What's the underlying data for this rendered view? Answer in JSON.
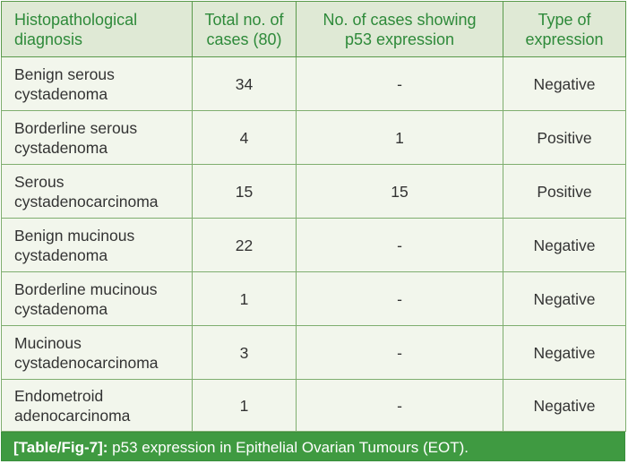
{
  "table": {
    "headers": [
      "Histopathological diagnosis",
      "Total no. of cases (80)",
      "No. of cases showing p53 expression",
      "Type of expression"
    ],
    "header_lines": [
      [
        "Histopathological",
        "diagnosis"
      ],
      [
        "Total no. of",
        "cases (80)"
      ],
      [
        "No. of cases showing",
        "p53 expression"
      ],
      [
        "Type of",
        "expression"
      ]
    ],
    "rows": [
      {
        "diagnosis_lines": [
          "Benign serous",
          "cystadenoma"
        ],
        "total": "34",
        "p53_cases": "-",
        "type": "Negative"
      },
      {
        "diagnosis_lines": [
          "Borderline serous",
          "cystadenoma"
        ],
        "total": "4",
        "p53_cases": "1",
        "type": "Positive"
      },
      {
        "diagnosis_lines": [
          "Serous",
          "cystadenocarcinoma"
        ],
        "total": "15",
        "p53_cases": "15",
        "type": "Positive"
      },
      {
        "diagnosis_lines": [
          "Benign mucinous",
          "cystadenoma"
        ],
        "total": "22",
        "p53_cases": "-",
        "type": "Negative"
      },
      {
        "diagnosis_lines": [
          "Borderline mucinous",
          "cystadenoma"
        ],
        "total": "1",
        "p53_cases": "-",
        "type": "Negative"
      },
      {
        "diagnosis_lines": [
          "Mucinous",
          "cystadenocarcinoma"
        ],
        "total": "3",
        "p53_cases": "-",
        "type": "Negative"
      },
      {
        "diagnosis_lines": [
          "Endometroid",
          "adenocarcinoma"
        ],
        "total": "1",
        "p53_cases": "-",
        "type": "Negative"
      }
    ]
  },
  "caption": {
    "label": "[Table/Fig-7]:",
    "text": " p53 expression in Epithelial Ovarian Tumours (EOT)."
  },
  "colors": {
    "header_text": "#2e8a3a",
    "header_bg": "#dfe9d5",
    "body_bg": "#f2f6ec",
    "caption_bg": "#3f9a41",
    "border": "#7fae6f"
  }
}
